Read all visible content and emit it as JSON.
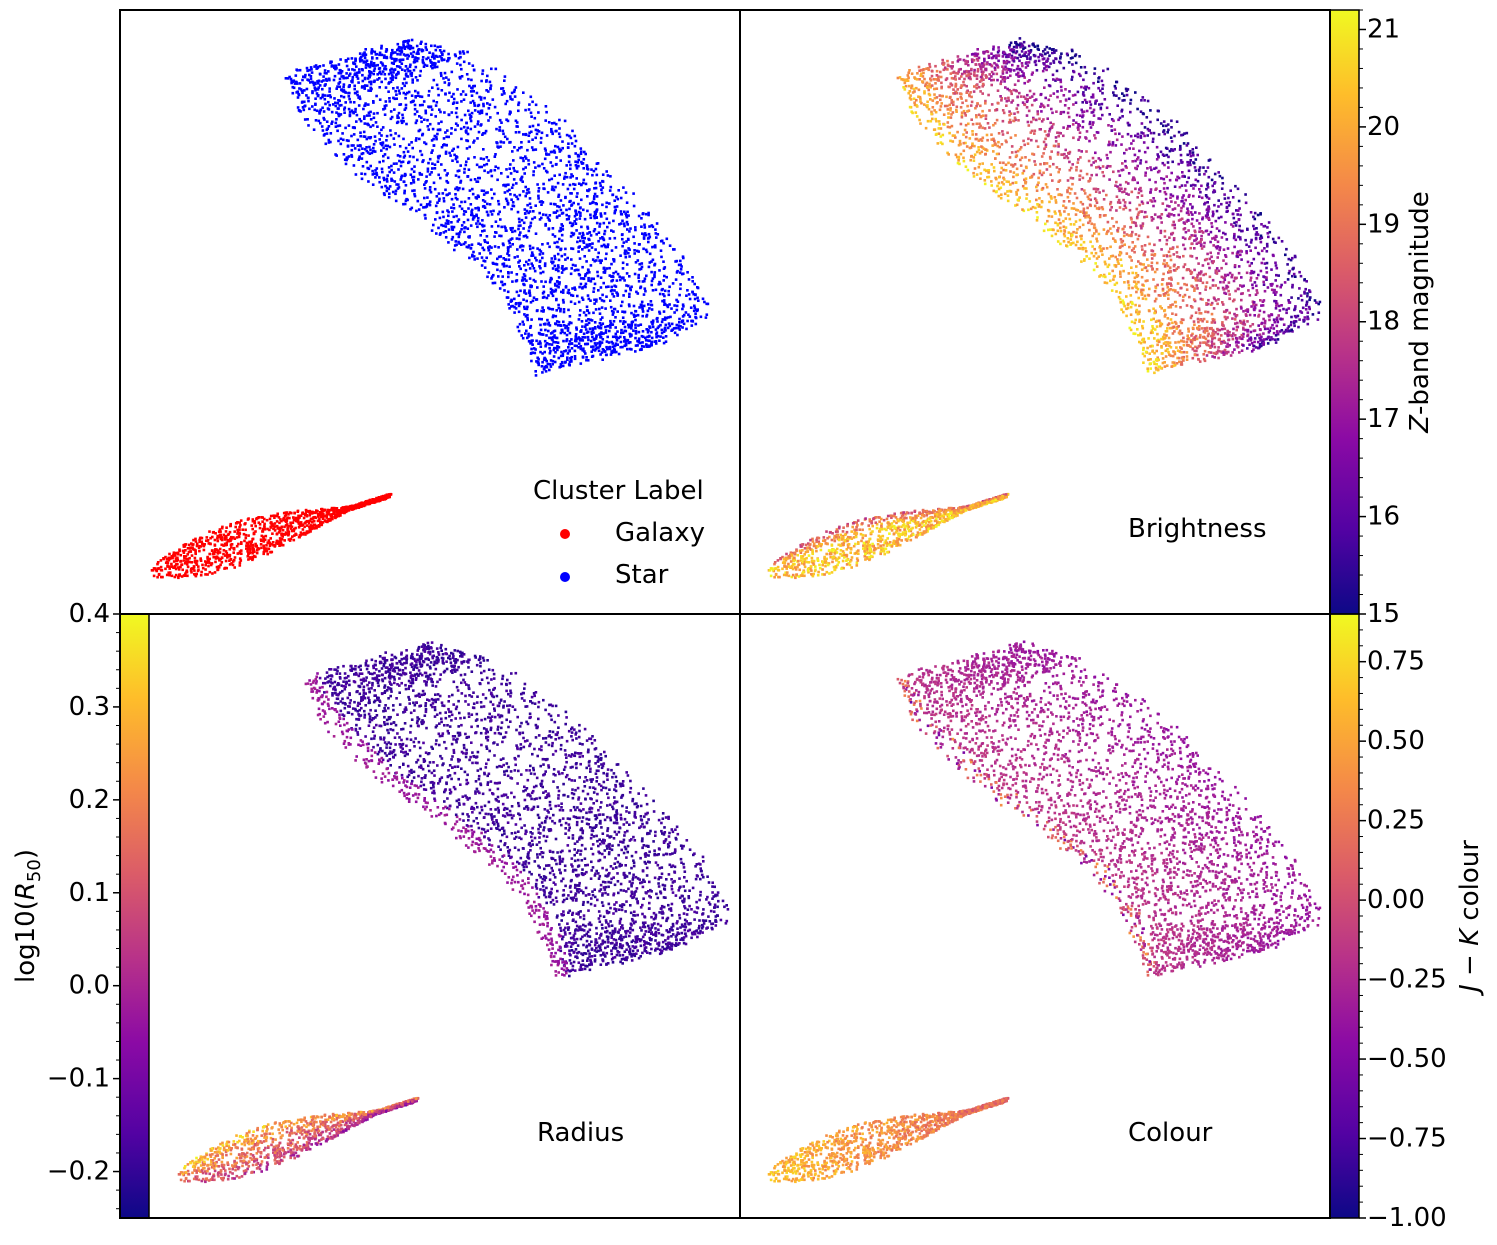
{
  "chart_data": [
    {
      "type": "scatter",
      "panel": "top-left",
      "coloring": "categorical",
      "legend": {
        "title": "Cluster Label",
        "placement": "lower-right",
        "entries": [
          {
            "label": "Galaxy",
            "color": "#ff0000"
          },
          {
            "label": "Star",
            "color": "#0000ff"
          }
        ]
      },
      "series": [
        {
          "name": "Galaxy",
          "color": "#ff0000",
          "region": "lower-left elongated cluster"
        },
        {
          "name": "Star",
          "color": "#0000ff",
          "region": "upper curved band"
        }
      ]
    },
    {
      "type": "scatter",
      "panel": "top-right",
      "annotation": "Brightness",
      "coloring": "continuous",
      "colormap": "plasma",
      "colorbar": {
        "label_prefix": "Z",
        "label_rest": "-band magnitude",
        "range": [
          15,
          21.2
        ],
        "ticks": [
          "15",
          "16",
          "17",
          "18",
          "19",
          "20",
          "21"
        ]
      }
    },
    {
      "type": "scatter",
      "panel": "bottom-left",
      "annotation": "Radius",
      "coloring": "continuous",
      "colormap": "plasma",
      "colorbar": {
        "label_main": "log10(",
        "label_var": "R",
        "label_sub": "50",
        "label_close": ")",
        "range": [
          -0.25,
          0.4
        ],
        "ticks": [
          "0.4",
          "0.3",
          "0.2",
          "0.1",
          "0.0",
          "−0.1",
          "−0.2"
        ],
        "tick_values": [
          0.4,
          0.3,
          0.2,
          0.1,
          0.0,
          -0.1,
          -0.2
        ]
      }
    },
    {
      "type": "scatter",
      "panel": "bottom-right",
      "annotation": "Colour",
      "coloring": "continuous",
      "colormap": "plasma",
      "colorbar": {
        "label_j": "J",
        "label_minus": " − ",
        "label_k": "K",
        "label_rest": " colour",
        "range": [
          -1.0,
          0.9
        ],
        "ticks": [
          "0.75",
          "0.50",
          "0.25",
          "0.00",
          "−0.25",
          "−0.50",
          "−0.75",
          "−1.00"
        ],
        "tick_values": [
          0.75,
          0.5,
          0.25,
          0.0,
          -0.25,
          -0.5,
          -0.75,
          -1.0
        ]
      }
    }
  ],
  "colors": {
    "galaxy": "#ff0000",
    "star": "#0000ff",
    "plasma": [
      "#0d0887",
      "#5302a3",
      "#8b0aa5",
      "#b83289",
      "#db5c68",
      "#f48849",
      "#febd2a",
      "#f0f921"
    ]
  }
}
